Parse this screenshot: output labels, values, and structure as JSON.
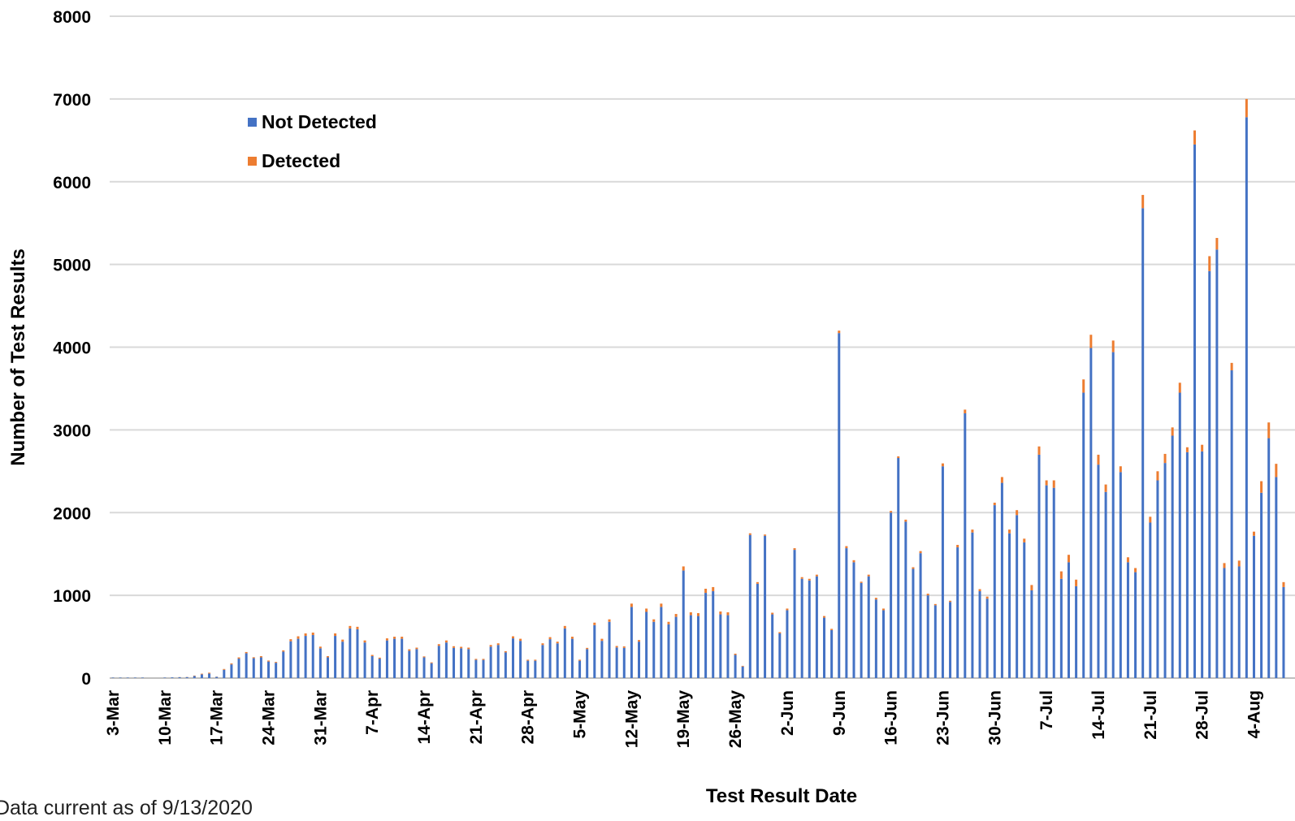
{
  "chart_data": {
    "type": "bar",
    "stacked": true,
    "title": "",
    "xlabel": "Test Result Date",
    "ylabel": "Number of Test Results",
    "ylim": [
      0,
      8000
    ],
    "yticks": [
      0,
      1000,
      2000,
      3000,
      4000,
      5000,
      6000,
      7000,
      8000
    ],
    "grid": true,
    "legend_position": "upper-left",
    "start_date": "2020-03-03",
    "x_tick_labels": [
      "3-Mar",
      "10-Mar",
      "17-Mar",
      "24-Mar",
      "31-Mar",
      "7-Apr",
      "14-Apr",
      "21-Apr",
      "28-Apr",
      "5-May",
      "12-May",
      "19-May",
      "26-May",
      "2-Jun",
      "9-Jun",
      "16-Jun",
      "23-Jun",
      "30-Jun",
      "7-Jul",
      "14-Jul",
      "21-Jul",
      "28-Jul",
      "4-Aug"
    ],
    "footnote": "Data current as of 9/13/2020",
    "series": [
      {
        "name": "Not Detected",
        "color": "#4472C4",
        "values": [
          5,
          5,
          5,
          5,
          5,
          0,
          0,
          5,
          8,
          10,
          12,
          25,
          45,
          55,
          15,
          100,
          165,
          235,
          300,
          240,
          250,
          200,
          185,
          320,
          445,
          475,
          510,
          520,
          360,
          250,
          510,
          440,
          600,
          590,
          430,
          265,
          235,
          455,
          475,
          475,
          330,
          350,
          250,
          180,
          390,
          430,
          365,
          360,
          350,
          220,
          220,
          380,
          400,
          310,
          480,
          450,
          210,
          210,
          400,
          470,
          420,
          600,
          475,
          210,
          350,
          640,
          450,
          680,
          370,
          365,
          860,
          440,
          800,
          680,
          860,
          650,
          740,
          1300,
          760,
          750,
          1030,
          1050,
          770,
          760,
          280,
          140,
          1730,
          1140,
          1720,
          770,
          540,
          820,
          1550,
          1200,
          1180,
          1230,
          730,
          580,
          4170,
          1570,
          1400,
          1150,
          1230,
          950,
          820,
          2000,
          2660,
          1890,
          1320,
          1510,
          1000,
          880,
          2560,
          920,
          1580,
          3200,
          1760,
          1050,
          960,
          2090,
          2360,
          1750,
          1970,
          1640,
          1060,
          2700,
          2330,
          2300,
          1200,
          1400,
          1110,
          3450,
          3990,
          2580,
          2250,
          3940,
          2490,
          1400,
          1280,
          5680,
          1880,
          2390,
          2600,
          2930,
          3450,
          2730,
          6450,
          2740,
          4920,
          5180,
          1330,
          3720,
          1350,
          6780,
          1720,
          2240,
          2900,
          2430,
          1100
        ]
      },
      {
        "name": "Detected",
        "color": "#ED7D31",
        "values": [
          0,
          0,
          0,
          0,
          0,
          0,
          0,
          0,
          0,
          2,
          2,
          5,
          8,
          10,
          2,
          10,
          12,
          15,
          15,
          12,
          15,
          12,
          10,
          15,
          25,
          30,
          30,
          30,
          20,
          15,
          30,
          25,
          30,
          30,
          25,
          15,
          12,
          25,
          25,
          25,
          18,
          18,
          12,
          10,
          20,
          25,
          20,
          18,
          18,
          12,
          12,
          20,
          20,
          15,
          25,
          25,
          12,
          12,
          20,
          25,
          20,
          30,
          25,
          12,
          15,
          30,
          25,
          30,
          18,
          18,
          40,
          20,
          40,
          30,
          40,
          30,
          35,
          50,
          35,
          35,
          50,
          50,
          35,
          35,
          15,
          8,
          20,
          20,
          15,
          20,
          15,
          20,
          20,
          20,
          20,
          20,
          20,
          15,
          30,
          25,
          25,
          15,
          20,
          20,
          20,
          20,
          20,
          25,
          20,
          25,
          20,
          15,
          35,
          15,
          30,
          45,
          35,
          25,
          25,
          30,
          70,
          45,
          60,
          45,
          65,
          100,
          60,
          90,
          90,
          90,
          80,
          160,
          160,
          120,
          90,
          140,
          70,
          60,
          50,
          160,
          70,
          110,
          110,
          100,
          120,
          60,
          170,
          80,
          180,
          140,
          60,
          90,
          70,
          220,
          50,
          140,
          190,
          160,
          60
        ]
      }
    ]
  }
}
